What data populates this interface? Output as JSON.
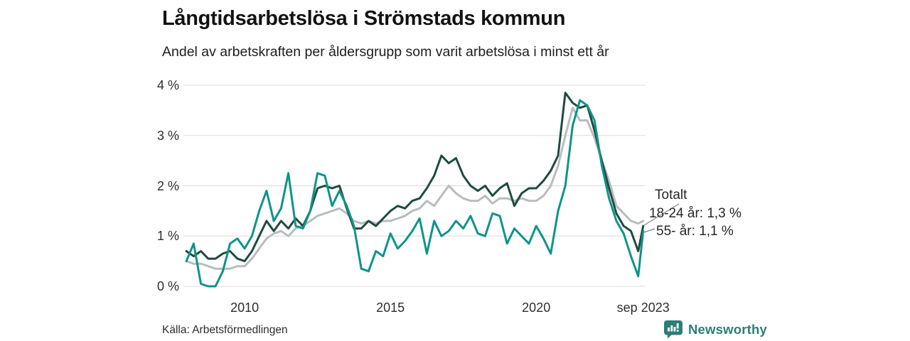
{
  "header": {
    "title": "Långtidsarbetslösa i Strömstads kommun",
    "subtitle": "Andel av arbetskraften per åldersgrupp som varit arbetslösa i minst ett år"
  },
  "annotations": {
    "totalt": "Totalt",
    "age_18_24": "18-24 år: 1,3 %",
    "age_55": "55- år: 1,1 %"
  },
  "footer": {
    "source": "Källa: Arbetsförmedlingen",
    "brand": "Newsworthy"
  },
  "colors": {
    "series_totalt": "#1e4b41",
    "series_18_24": "#b9bcbf",
    "series_55": "#0e9488",
    "gridline": "#dcdcdc",
    "connector": "#666666",
    "brand_teal": "#2c7d75"
  },
  "chart_data": {
    "type": "line",
    "title": "Långtidsarbetslösa i Strömstads kommun",
    "subtitle": "Andel av arbetskraften per åldersgrupp som varit arbetslösa i minst ett år",
    "ylabel": "",
    "xlabel": "",
    "ylim": [
      0,
      4
    ],
    "xlim": [
      2007.9,
      2023.75
    ],
    "grid": "horizontal",
    "legend_position": "right-end-labels",
    "yticks": [
      {
        "value": 0,
        "label": "0 %"
      },
      {
        "value": 1,
        "label": "1 %"
      },
      {
        "value": 2,
        "label": "2 %"
      },
      {
        "value": 3,
        "label": "3 %"
      },
      {
        "value": 4,
        "label": "4 %"
      }
    ],
    "xticks": [
      {
        "value": 2010,
        "label": "2010"
      },
      {
        "value": 2015,
        "label": "2015"
      },
      {
        "value": 2020,
        "label": "2020"
      },
      {
        "value": 2023.67,
        "label": "sep 2023"
      }
    ],
    "x": [
      2008.0,
      2008.25,
      2008.5,
      2008.75,
      2009.0,
      2009.25,
      2009.5,
      2009.75,
      2010.0,
      2010.25,
      2010.5,
      2010.75,
      2011.0,
      2011.25,
      2011.5,
      2011.75,
      2012.0,
      2012.25,
      2012.5,
      2012.75,
      2013.0,
      2013.25,
      2013.5,
      2013.75,
      2014.0,
      2014.25,
      2014.5,
      2014.75,
      2015.0,
      2015.25,
      2015.5,
      2015.75,
      2016.0,
      2016.25,
      2016.5,
      2016.75,
      2017.0,
      2017.25,
      2017.5,
      2017.75,
      2018.0,
      2018.25,
      2018.5,
      2018.75,
      2019.0,
      2019.25,
      2019.5,
      2019.75,
      2020.0,
      2020.25,
      2020.5,
      2020.75,
      2021.0,
      2021.25,
      2021.5,
      2021.75,
      2022.0,
      2022.25,
      2022.5,
      2022.75,
      2023.0,
      2023.25,
      2023.5,
      2023.67
    ],
    "series": [
      {
        "name": "Totalt",
        "color": "#1e4b41",
        "values": [
          0.7,
          0.6,
          0.7,
          0.55,
          0.55,
          0.65,
          0.7,
          0.55,
          0.5,
          0.7,
          1.0,
          1.3,
          1.1,
          1.3,
          1.15,
          1.35,
          1.2,
          1.5,
          1.95,
          2.0,
          1.95,
          2.0,
          1.55,
          1.15,
          1.15,
          1.3,
          1.2,
          1.35,
          1.5,
          1.6,
          1.55,
          1.7,
          1.75,
          1.95,
          2.2,
          2.6,
          2.45,
          2.55,
          2.2,
          2.0,
          1.9,
          2.0,
          1.8,
          1.95,
          2.05,
          1.6,
          1.85,
          1.95,
          1.95,
          2.1,
          2.3,
          2.6,
          3.85,
          3.65,
          3.55,
          3.6,
          3.1,
          2.5,
          1.95,
          1.45,
          1.2,
          1.1,
          0.7,
          1.2
        ]
      },
      {
        "name": "18-24 år",
        "color": "#b9bcbf",
        "end_value": "1,3 %",
        "values": [
          0.5,
          0.45,
          0.45,
          0.4,
          0.35,
          0.35,
          0.35,
          0.4,
          0.4,
          0.55,
          0.75,
          0.95,
          1.05,
          1.1,
          1.0,
          1.15,
          1.2,
          1.3,
          1.4,
          1.45,
          1.5,
          1.55,
          1.45,
          1.3,
          1.25,
          1.3,
          1.25,
          1.3,
          1.3,
          1.35,
          1.4,
          1.5,
          1.55,
          1.7,
          1.6,
          1.8,
          2.0,
          1.85,
          1.75,
          1.7,
          1.7,
          1.8,
          1.65,
          1.75,
          1.75,
          1.7,
          1.75,
          1.7,
          1.7,
          1.8,
          2.0,
          2.4,
          3.0,
          3.55,
          3.3,
          3.3,
          2.95,
          2.5,
          2.1,
          1.6,
          1.45,
          1.3,
          1.25,
          1.3
        ]
      },
      {
        "name": "55- år",
        "color": "#0e9488",
        "end_value": "1,1 %",
        "values": [
          0.5,
          0.85,
          0.05,
          0.0,
          0.0,
          0.3,
          0.85,
          0.95,
          0.75,
          1.0,
          1.5,
          1.9,
          1.3,
          1.55,
          2.25,
          1.2,
          1.15,
          1.5,
          2.25,
          2.2,
          1.6,
          1.9,
          1.6,
          1.2,
          0.35,
          0.3,
          0.7,
          0.6,
          1.05,
          0.75,
          0.9,
          1.1,
          1.35,
          0.65,
          1.3,
          1.0,
          1.1,
          1.3,
          1.15,
          1.4,
          1.05,
          1.0,
          1.45,
          1.4,
          0.85,
          1.15,
          1.0,
          0.85,
          1.2,
          0.95,
          0.65,
          1.5,
          2.0,
          3.2,
          3.7,
          3.6,
          3.3,
          2.4,
          1.75,
          1.3,
          1.05,
          0.6,
          0.2,
          1.1
        ]
      }
    ]
  }
}
